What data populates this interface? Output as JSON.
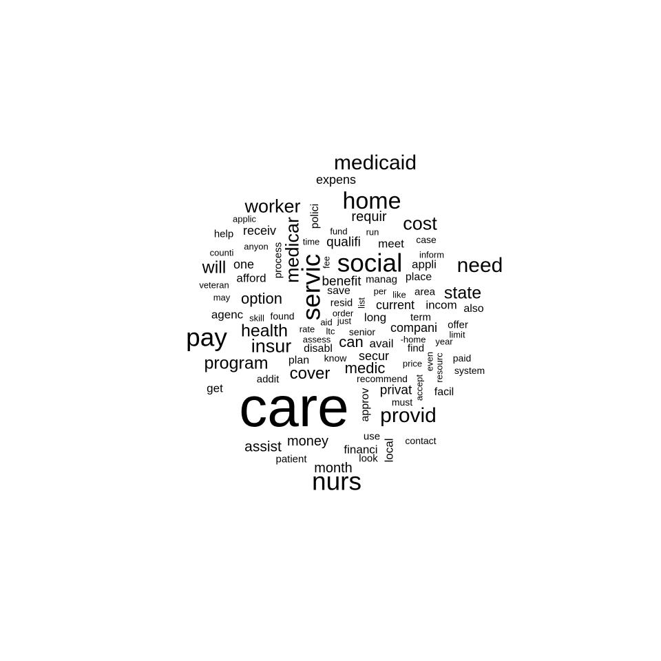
{
  "word_cloud": {
    "text_color": "#000000",
    "background_color": "#ffffff",
    "words": [
      {
        "text": "care",
        "orientation": "horizontal"
      },
      {
        "text": "nurs",
        "orientation": "horizontal"
      },
      {
        "text": "social",
        "orientation": "horizontal"
      },
      {
        "text": "servic",
        "orientation": "vertical"
      },
      {
        "text": "pay",
        "orientation": "horizontal"
      },
      {
        "text": "home",
        "orientation": "horizontal"
      },
      {
        "text": "medicaid",
        "orientation": "horizontal"
      },
      {
        "text": "provid",
        "orientation": "horizontal"
      },
      {
        "text": "need",
        "orientation": "horizontal"
      },
      {
        "text": "insur",
        "orientation": "horizontal"
      },
      {
        "text": "medicar",
        "orientation": "vertical"
      },
      {
        "text": "worker",
        "orientation": "horizontal"
      },
      {
        "text": "cost",
        "orientation": "horizontal"
      },
      {
        "text": "program",
        "orientation": "horizontal"
      },
      {
        "text": "health",
        "orientation": "horizontal"
      },
      {
        "text": "will",
        "orientation": "horizontal"
      },
      {
        "text": "state",
        "orientation": "horizontal"
      },
      {
        "text": "cover",
        "orientation": "horizontal"
      },
      {
        "text": "option",
        "orientation": "horizontal"
      },
      {
        "text": "can",
        "orientation": "horizontal"
      },
      {
        "text": "medic",
        "orientation": "horizontal"
      },
      {
        "text": "assist",
        "orientation": "horizontal"
      },
      {
        "text": "money",
        "orientation": "horizontal"
      },
      {
        "text": "month",
        "orientation": "horizontal"
      },
      {
        "text": "requir",
        "orientation": "horizontal"
      },
      {
        "text": "benefit",
        "orientation": "horizontal"
      },
      {
        "text": "privat",
        "orientation": "horizontal"
      },
      {
        "text": "qualifi",
        "orientation": "horizontal"
      },
      {
        "text": "secur",
        "orientation": "horizontal"
      },
      {
        "text": "receiv",
        "orientation": "horizontal"
      },
      {
        "text": "one",
        "orientation": "horizontal"
      },
      {
        "text": "compani",
        "orientation": "horizontal"
      },
      {
        "text": "current",
        "orientation": "horizontal"
      },
      {
        "text": "financi",
        "orientation": "horizontal"
      },
      {
        "text": "local",
        "orientation": "vertical"
      },
      {
        "text": "expens",
        "orientation": "horizontal"
      },
      {
        "text": "afford",
        "orientation": "horizontal"
      },
      {
        "text": "agenc",
        "orientation": "horizontal"
      },
      {
        "text": "appli",
        "orientation": "horizontal"
      },
      {
        "text": "meet",
        "orientation": "horizontal"
      },
      {
        "text": "incom",
        "orientation": "horizontal"
      },
      {
        "text": "long",
        "orientation": "horizontal"
      },
      {
        "text": "avail",
        "orientation": "horizontal"
      },
      {
        "text": "get",
        "orientation": "horizontal"
      },
      {
        "text": "polici",
        "orientation": "vertical"
      },
      {
        "text": "approv",
        "orientation": "vertical"
      },
      {
        "text": "plan",
        "orientation": "horizontal"
      },
      {
        "text": "facil",
        "orientation": "horizontal"
      },
      {
        "text": "place",
        "orientation": "horizontal"
      },
      {
        "text": "area",
        "orientation": "horizontal"
      },
      {
        "text": "save",
        "orientation": "horizontal"
      },
      {
        "text": "help",
        "orientation": "horizontal"
      },
      {
        "text": "addit",
        "orientation": "horizontal"
      },
      {
        "text": "disabl",
        "orientation": "horizontal"
      },
      {
        "text": "patient",
        "orientation": "horizontal"
      },
      {
        "text": "process",
        "orientation": "vertical"
      },
      {
        "text": "also",
        "orientation": "horizontal"
      },
      {
        "text": "resid",
        "orientation": "horizontal"
      },
      {
        "text": "find",
        "orientation": "horizontal"
      },
      {
        "text": "term",
        "orientation": "horizontal"
      },
      {
        "text": "manag",
        "orientation": "horizontal"
      },
      {
        "text": "case",
        "orientation": "horizontal"
      },
      {
        "text": "offer",
        "orientation": "horizontal"
      },
      {
        "text": "use",
        "orientation": "horizontal"
      },
      {
        "text": "look",
        "orientation": "horizontal"
      },
      {
        "text": "contact",
        "orientation": "horizontal"
      },
      {
        "text": "recommend",
        "orientation": "horizontal"
      },
      {
        "text": "must",
        "orientation": "horizontal"
      },
      {
        "text": "senior",
        "orientation": "horizontal"
      },
      {
        "text": "inform",
        "orientation": "horizontal"
      },
      {
        "text": "know",
        "orientation": "horizontal"
      },
      {
        "text": "found",
        "orientation": "horizontal"
      },
      {
        "text": "system",
        "orientation": "horizontal"
      },
      {
        "text": "paid",
        "orientation": "horizontal"
      },
      {
        "text": "applic",
        "orientation": "horizontal"
      },
      {
        "text": "fund",
        "orientation": "horizontal"
      },
      {
        "text": "anyon",
        "orientation": "horizontal"
      },
      {
        "text": "counti",
        "orientation": "horizontal"
      },
      {
        "text": "veteran",
        "orientation": "horizontal"
      },
      {
        "text": "may",
        "orientation": "horizontal"
      },
      {
        "text": "skill",
        "orientation": "horizontal"
      },
      {
        "text": "run",
        "orientation": "horizontal"
      },
      {
        "text": "time",
        "orientation": "horizontal"
      },
      {
        "text": "fee",
        "orientation": "vertical"
      },
      {
        "text": "per",
        "orientation": "horizontal"
      },
      {
        "text": "like",
        "orientation": "horizontal"
      },
      {
        "text": "list",
        "orientation": "vertical"
      },
      {
        "text": "order",
        "orientation": "horizontal"
      },
      {
        "text": "aid",
        "orientation": "horizontal"
      },
      {
        "text": "just",
        "orientation": "horizontal"
      },
      {
        "text": "rate",
        "orientation": "horizontal"
      },
      {
        "text": "ltc",
        "orientation": "horizontal"
      },
      {
        "text": "assess",
        "orientation": "horizontal"
      },
      {
        "text": "-home",
        "orientation": "horizontal"
      },
      {
        "text": "year",
        "orientation": "horizontal"
      },
      {
        "text": "limit",
        "orientation": "horizontal"
      },
      {
        "text": "price",
        "orientation": "horizontal"
      },
      {
        "text": "even",
        "orientation": "vertical"
      },
      {
        "text": "resourc",
        "orientation": "vertical"
      },
      {
        "text": "accept",
        "orientation": "vertical"
      }
    ]
  }
}
